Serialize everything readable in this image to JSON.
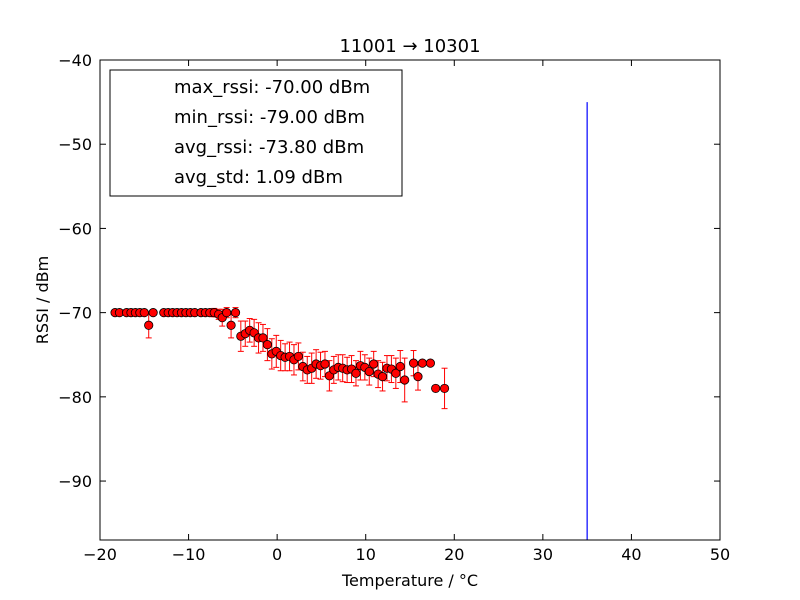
{
  "chart_data": {
    "type": "scatter",
    "title": "11001 → 10301",
    "xlabel": "Temperature / °C",
    "ylabel": "RSSI / dBm",
    "xlim": [
      -20,
      50
    ],
    "ylim": [
      -97,
      -40
    ],
    "xticks": [
      -20,
      -10,
      0,
      10,
      20,
      30,
      40,
      50
    ],
    "yticks": [
      -40,
      -50,
      -60,
      -70,
      -80,
      -90
    ],
    "grid": false,
    "legend_placement": "top-left",
    "legend_entries": [
      "max_rssi: -70.00 dBm",
      "min_rssi: -79.00 dBm",
      "avg_rssi: -73.80 dBm",
      "avg_std: 1.09 dBm"
    ],
    "marker_color": "#ff0000",
    "errorbar_color": "#ff0000",
    "vline_color": "#0000ff",
    "vline": {
      "x": 35,
      "y_from": -97,
      "y_to": -45
    },
    "points": [
      {
        "x": -18.3,
        "y": -70.0,
        "err": 0.0
      },
      {
        "x": -17.8,
        "y": -70.0,
        "err": 0.0
      },
      {
        "x": -17.0,
        "y": -70.0,
        "err": 0.0
      },
      {
        "x": -16.5,
        "y": -70.0,
        "err": 0.0
      },
      {
        "x": -16.0,
        "y": -70.0,
        "err": 0.0
      },
      {
        "x": -15.5,
        "y": -70.0,
        "err": 0.0
      },
      {
        "x": -15.0,
        "y": -70.0,
        "err": 0.0
      },
      {
        "x": -14.5,
        "y": -71.5,
        "err": 1.5
      },
      {
        "x": -14.0,
        "y": -70.0,
        "err": 0.0
      },
      {
        "x": -12.8,
        "y": -70.0,
        "err": 0.0
      },
      {
        "x": -12.3,
        "y": -70.0,
        "err": 0.0
      },
      {
        "x": -11.8,
        "y": -70.0,
        "err": 0.0
      },
      {
        "x": -11.3,
        "y": -70.0,
        "err": 0.0
      },
      {
        "x": -10.8,
        "y": -70.0,
        "err": 0.0
      },
      {
        "x": -10.3,
        "y": -70.0,
        "err": 0.0
      },
      {
        "x": -9.8,
        "y": -70.0,
        "err": 0.0
      },
      {
        "x": -9.3,
        "y": -70.0,
        "err": 0.0
      },
      {
        "x": -8.6,
        "y": -70.0,
        "err": 0.0
      },
      {
        "x": -8.1,
        "y": -70.0,
        "err": 0.0
      },
      {
        "x": -7.6,
        "y": -70.0,
        "err": 0.0
      },
      {
        "x": -7.1,
        "y": -70.0,
        "err": 0.5
      },
      {
        "x": -6.6,
        "y": -70.2,
        "err": 0.6
      },
      {
        "x": -6.2,
        "y": -70.6,
        "err": 1.0
      },
      {
        "x": -5.7,
        "y": -70.0,
        "err": 0.6
      },
      {
        "x": -5.2,
        "y": -71.5,
        "err": 1.5
      },
      {
        "x": -4.7,
        "y": -70.0,
        "err": 0.6
      },
      {
        "x": -4.1,
        "y": -72.8,
        "err": 1.8
      },
      {
        "x": -3.6,
        "y": -72.5,
        "err": 1.5
      },
      {
        "x": -3.1,
        "y": -72.1,
        "err": 1.4
      },
      {
        "x": -2.6,
        "y": -72.4,
        "err": 1.6
      },
      {
        "x": -2.1,
        "y": -73.0,
        "err": 1.8
      },
      {
        "x": -1.6,
        "y": -73.0,
        "err": 1.6
      },
      {
        "x": -1.1,
        "y": -73.8,
        "err": 1.9
      },
      {
        "x": -0.6,
        "y": -74.9,
        "err": 1.8
      },
      {
        "x": -0.1,
        "y": -74.6,
        "err": 1.9
      },
      {
        "x": 0.4,
        "y": -75.1,
        "err": 1.8
      },
      {
        "x": 0.9,
        "y": -75.3,
        "err": 1.6
      },
      {
        "x": 1.4,
        "y": -75.2,
        "err": 1.7
      },
      {
        "x": 1.9,
        "y": -75.6,
        "err": 1.8
      },
      {
        "x": 2.4,
        "y": -75.2,
        "err": 1.6
      },
      {
        "x": 2.9,
        "y": -76.4,
        "err": 1.7
      },
      {
        "x": 3.4,
        "y": -76.8,
        "err": 1.6
      },
      {
        "x": 3.9,
        "y": -76.6,
        "err": 1.8
      },
      {
        "x": 4.4,
        "y": -76.1,
        "err": 1.7
      },
      {
        "x": 4.9,
        "y": -76.3,
        "err": 1.6
      },
      {
        "x": 5.4,
        "y": -76.1,
        "err": 1.5
      },
      {
        "x": 5.9,
        "y": -77.5,
        "err": 1.8
      },
      {
        "x": 6.4,
        "y": -76.8,
        "err": 1.6
      },
      {
        "x": 6.9,
        "y": -76.5,
        "err": 1.5
      },
      {
        "x": 7.4,
        "y": -76.6,
        "err": 1.6
      },
      {
        "x": 7.9,
        "y": -76.8,
        "err": 1.5
      },
      {
        "x": 8.4,
        "y": -76.7,
        "err": 1.6
      },
      {
        "x": 8.9,
        "y": -77.2,
        "err": 1.5
      },
      {
        "x": 9.4,
        "y": -76.3,
        "err": 1.7
      },
      {
        "x": 9.9,
        "y": -76.5,
        "err": 1.5
      },
      {
        "x": 10.4,
        "y": -77.0,
        "err": 1.6
      },
      {
        "x": 10.9,
        "y": -76.1,
        "err": 1.5
      },
      {
        "x": 11.4,
        "y": -77.3,
        "err": 1.6
      },
      {
        "x": 11.9,
        "y": -77.6,
        "err": 1.7
      },
      {
        "x": 12.4,
        "y": -76.6,
        "err": 1.5
      },
      {
        "x": 12.9,
        "y": -76.7,
        "err": 1.6
      },
      {
        "x": 13.4,
        "y": -77.2,
        "err": 1.8
      },
      {
        "x": 13.9,
        "y": -76.4,
        "err": 1.9
      },
      {
        "x": 14.4,
        "y": -78.0,
        "err": 2.6
      },
      {
        "x": 15.4,
        "y": -76.0,
        "err": 1.5
      },
      {
        "x": 15.9,
        "y": -77.6,
        "err": 1.6
      },
      {
        "x": 16.4,
        "y": -76.0,
        "err": 0.0
      },
      {
        "x": 17.3,
        "y": -76.0,
        "err": 0.0
      },
      {
        "x": 17.9,
        "y": -79.0,
        "err": 0.0
      },
      {
        "x": 18.9,
        "y": -79.0,
        "err": 2.4
      }
    ]
  }
}
